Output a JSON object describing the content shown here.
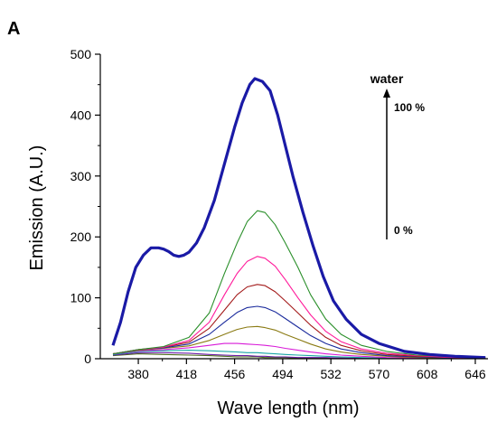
{
  "panel_label": "A",
  "chart_data": {
    "type": "line",
    "xlabel": "Wave length (nm)",
    "ylabel": "Emission (A.U.)",
    "xlim": [
      350,
      656
    ],
    "ylim": [
      0,
      500
    ],
    "xticks": [
      380,
      418,
      456,
      494,
      532,
      570,
      608,
      646
    ],
    "yticks": [
      0,
      100,
      200,
      300,
      400,
      500
    ],
    "grid": false,
    "legend": null,
    "annotation": {
      "title": "water",
      "top_label": "100 %",
      "bottom_label": "0 %"
    },
    "series": [
      {
        "color": "#1a1aa6",
        "width": 3.2,
        "points": [
          [
            360,
            22
          ],
          [
            366,
            60
          ],
          [
            372,
            110
          ],
          [
            378,
            150
          ],
          [
            384,
            170
          ],
          [
            390,
            182
          ],
          [
            396,
            182
          ],
          [
            400,
            180
          ],
          [
            404,
            176
          ],
          [
            408,
            170
          ],
          [
            412,
            168
          ],
          [
            416,
            170
          ],
          [
            420,
            175
          ],
          [
            426,
            190
          ],
          [
            432,
            215
          ],
          [
            440,
            260
          ],
          [
            448,
            320
          ],
          [
            456,
            380
          ],
          [
            462,
            420
          ],
          [
            468,
            450
          ],
          [
            472,
            460
          ],
          [
            478,
            455
          ],
          [
            484,
            440
          ],
          [
            490,
            400
          ],
          [
            496,
            350
          ],
          [
            502,
            300
          ],
          [
            510,
            240
          ],
          [
            518,
            185
          ],
          [
            526,
            135
          ],
          [
            534,
            95
          ],
          [
            544,
            65
          ],
          [
            556,
            40
          ],
          [
            570,
            25
          ],
          [
            590,
            12
          ],
          [
            610,
            7
          ],
          [
            630,
            4
          ],
          [
            654,
            2
          ]
        ]
      },
      {
        "color": "#2a8f2a",
        "width": 1.1,
        "points": [
          [
            360,
            8
          ],
          [
            380,
            15
          ],
          [
            400,
            20
          ],
          [
            420,
            35
          ],
          [
            436,
            75
          ],
          [
            448,
            140
          ],
          [
            458,
            190
          ],
          [
            466,
            225
          ],
          [
            474,
            243
          ],
          [
            480,
            240
          ],
          [
            488,
            220
          ],
          [
            496,
            190
          ],
          [
            506,
            150
          ],
          [
            516,
            105
          ],
          [
            528,
            65
          ],
          [
            540,
            40
          ],
          [
            556,
            22
          ],
          [
            576,
            12
          ],
          [
            600,
            6
          ],
          [
            630,
            3
          ],
          [
            654,
            2
          ]
        ]
      },
      {
        "color": "#ff1a9a",
        "width": 1.1,
        "points": [
          [
            360,
            8
          ],
          [
            380,
            15
          ],
          [
            400,
            19
          ],
          [
            420,
            30
          ],
          [
            436,
            60
          ],
          [
            448,
            105
          ],
          [
            458,
            140
          ],
          [
            466,
            160
          ],
          [
            474,
            168
          ],
          [
            480,
            165
          ],
          [
            488,
            152
          ],
          [
            496,
            130
          ],
          [
            506,
            100
          ],
          [
            516,
            72
          ],
          [
            528,
            45
          ],
          [
            540,
            28
          ],
          [
            556,
            16
          ],
          [
            576,
            9
          ],
          [
            600,
            5
          ],
          [
            630,
            2
          ],
          [
            654,
            1
          ]
        ]
      },
      {
        "color": "#a31a1a",
        "width": 1.1,
        "points": [
          [
            360,
            8
          ],
          [
            380,
            15
          ],
          [
            400,
            19
          ],
          [
            420,
            27
          ],
          [
            436,
            50
          ],
          [
            448,
            80
          ],
          [
            458,
            105
          ],
          [
            466,
            118
          ],
          [
            474,
            122
          ],
          [
            480,
            120
          ],
          [
            488,
            110
          ],
          [
            496,
            95
          ],
          [
            506,
            75
          ],
          [
            516,
            55
          ],
          [
            528,
            35
          ],
          [
            540,
            22
          ],
          [
            556,
            13
          ],
          [
            576,
            7
          ],
          [
            600,
            4
          ],
          [
            630,
            2
          ],
          [
            654,
            1
          ]
        ]
      },
      {
        "color": "#1a2a9c",
        "width": 1.1,
        "points": [
          [
            360,
            8
          ],
          [
            380,
            15
          ],
          [
            400,
            18
          ],
          [
            420,
            24
          ],
          [
            436,
            40
          ],
          [
            448,
            60
          ],
          [
            458,
            76
          ],
          [
            466,
            84
          ],
          [
            474,
            86
          ],
          [
            480,
            84
          ],
          [
            488,
            77
          ],
          [
            496,
            66
          ],
          [
            506,
            52
          ],
          [
            516,
            38
          ],
          [
            528,
            25
          ],
          [
            540,
            16
          ],
          [
            556,
            10
          ],
          [
            576,
            5
          ],
          [
            600,
            3
          ],
          [
            630,
            1
          ],
          [
            654,
            1
          ]
        ]
      },
      {
        "color": "#8a7a12",
        "width": 1.1,
        "points": [
          [
            360,
            8
          ],
          [
            380,
            14
          ],
          [
            400,
            17
          ],
          [
            420,
            21
          ],
          [
            436,
            30
          ],
          [
            448,
            40
          ],
          [
            458,
            48
          ],
          [
            466,
            52
          ],
          [
            474,
            53
          ],
          [
            480,
            51
          ],
          [
            488,
            47
          ],
          [
            496,
            40
          ],
          [
            506,
            32
          ],
          [
            516,
            24
          ],
          [
            528,
            16
          ],
          [
            540,
            11
          ],
          [
            556,
            7
          ],
          [
            576,
            4
          ],
          [
            600,
            2
          ],
          [
            630,
            1
          ],
          [
            654,
            1
          ]
        ]
      },
      {
        "color": "#d81ad8",
        "width": 1.1,
        "points": [
          [
            360,
            8
          ],
          [
            380,
            13
          ],
          [
            400,
            15
          ],
          [
            420,
            18
          ],
          [
            436,
            22
          ],
          [
            448,
            25
          ],
          [
            458,
            25
          ],
          [
            466,
            24
          ],
          [
            474,
            23
          ],
          [
            480,
            22
          ],
          [
            488,
            20
          ],
          [
            496,
            17
          ],
          [
            506,
            14
          ],
          [
            516,
            11
          ],
          [
            528,
            8
          ],
          [
            540,
            6
          ],
          [
            556,
            4
          ],
          [
            576,
            2
          ],
          [
            600,
            1
          ],
          [
            630,
            1
          ],
          [
            654,
            0
          ]
        ]
      },
      {
        "color": "#1aa6a6",
        "width": 1.1,
        "points": [
          [
            360,
            7
          ],
          [
            380,
            12
          ],
          [
            400,
            13
          ],
          [
            420,
            14
          ],
          [
            436,
            13
          ],
          [
            448,
            12
          ],
          [
            458,
            11
          ],
          [
            466,
            10
          ],
          [
            474,
            10
          ],
          [
            480,
            9
          ],
          [
            488,
            8
          ],
          [
            496,
            7
          ],
          [
            506,
            6
          ],
          [
            516,
            5
          ],
          [
            528,
            4
          ],
          [
            540,
            3
          ],
          [
            556,
            2
          ],
          [
            576,
            1
          ],
          [
            600,
            1
          ],
          [
            630,
            0
          ],
          [
            654,
            0
          ]
        ]
      },
      {
        "color": "#6a1aa6",
        "width": 1.1,
        "points": [
          [
            360,
            6
          ],
          [
            380,
            10
          ],
          [
            400,
            10
          ],
          [
            420,
            9
          ],
          [
            436,
            7
          ],
          [
            448,
            6
          ],
          [
            458,
            5
          ],
          [
            466,
            5
          ],
          [
            474,
            4
          ],
          [
            480,
            4
          ],
          [
            488,
            3
          ],
          [
            496,
            3
          ],
          [
            506,
            2
          ],
          [
            516,
            2
          ],
          [
            528,
            2
          ],
          [
            540,
            1
          ],
          [
            556,
            1
          ],
          [
            576,
            1
          ],
          [
            600,
            0
          ],
          [
            630,
            0
          ],
          [
            654,
            0
          ]
        ]
      },
      {
        "color": "#4a6a1a",
        "width": 1.1,
        "points": [
          [
            360,
            5
          ],
          [
            380,
            8
          ],
          [
            400,
            7
          ],
          [
            420,
            6
          ],
          [
            436,
            5
          ],
          [
            448,
            4
          ],
          [
            458,
            3
          ],
          [
            466,
            3
          ],
          [
            474,
            3
          ],
          [
            480,
            2
          ],
          [
            488,
            2
          ],
          [
            496,
            2
          ],
          [
            506,
            1
          ],
          [
            516,
            1
          ],
          [
            528,
            1
          ],
          [
            540,
            1
          ],
          [
            556,
            0
          ],
          [
            576,
            0
          ],
          [
            600,
            0
          ],
          [
            630,
            0
          ],
          [
            654,
            0
          ]
        ]
      }
    ]
  }
}
